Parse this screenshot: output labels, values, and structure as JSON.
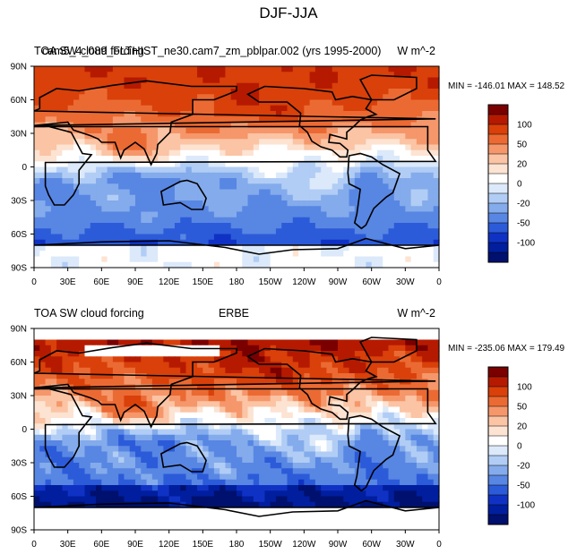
{
  "figure_title": "DJF-JJA",
  "colorbar": {
    "levels": [
      100,
      50,
      20,
      0,
      -20,
      -50,
      -100
    ],
    "colors": [
      "#7a0000",
      "#b51a00",
      "#d9400a",
      "#eb6a33",
      "#f5976a",
      "#fbc4a4",
      "#fce3d2",
      "#ffffff",
      "#dbe9fa",
      "#b1cdf5",
      "#84abeb",
      "#5886e3",
      "#2c5bd9",
      "#1032c4",
      "#001e9e",
      "#00106e"
    ]
  },
  "chart_data": [
    {
      "type": "heatmap",
      "left_title": "TOA SW cloud forcing",
      "center_title": "",
      "overlay_title": "cam5_4_089_FLTHIST_ne30.cam7_zm_pblpar.002 (yrs 1995-2000)",
      "units": "W m^-2",
      "stats": "MIN = -146.01 MAX = 148.52",
      "min": -146.01,
      "max": 148.52,
      "x_ticks": [
        "0",
        "30E",
        "60E",
        "90E",
        "120E",
        "150E",
        "180",
        "150W",
        "120W",
        "90W",
        "60W",
        "30W",
        "0"
      ],
      "y_ticks": [
        "90N",
        "60N",
        "30N",
        "0",
        "30S",
        "60S",
        "90S"
      ],
      "field": "DJF minus JJA shortwave cloud forcing, model"
    },
    {
      "type": "heatmap",
      "left_title": "TOA SW cloud forcing",
      "center_title": "ERBE",
      "units": "W m^-2",
      "stats": "MIN = -235.06 MAX = 179.49",
      "min": -235.06,
      "max": 179.49,
      "x_ticks": [
        "0",
        "30E",
        "60E",
        "90E",
        "120E",
        "150E",
        "180",
        "150W",
        "120W",
        "90W",
        "60W",
        "30W",
        "0"
      ],
      "y_ticks": [
        "90N",
        "60N",
        "30N",
        "0",
        "30S",
        "60S",
        "90S"
      ],
      "field": "DJF minus JJA shortwave cloud forcing, ERBE observations"
    }
  ]
}
